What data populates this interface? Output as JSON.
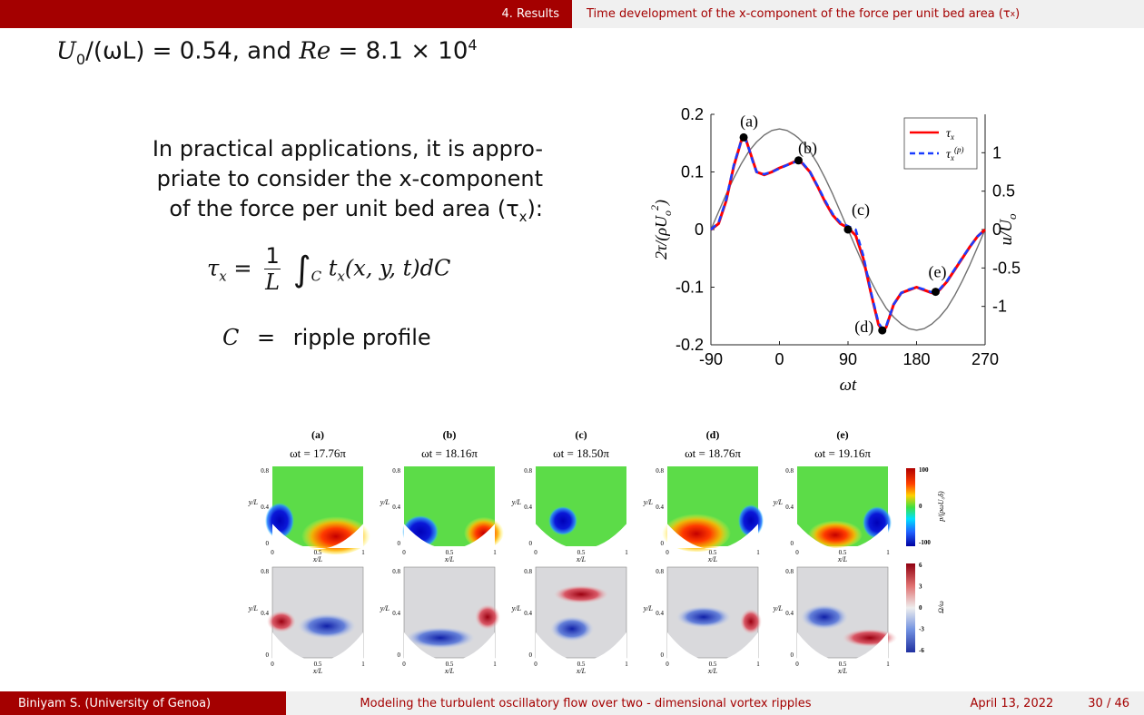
{
  "header": {
    "section": "4. Results",
    "frame_title": "Time development of the x-component of the force per unit bed area (τ",
    "frame_title_sub": "x",
    "frame_title_close": ")"
  },
  "heading": {
    "lhs": "U",
    "lhs_sub": "0",
    "lhs_rest": "/(ωL) = 0.54, and ",
    "re": "Re",
    "re_rest": " = 8.1 × 10",
    "re_exp": "4"
  },
  "body": {
    "line1": "In practical applications, it is appro-",
    "line2": "priate to consider the x-component",
    "line3": "of the force per unit bed area (τ",
    "line3_sub": "x",
    "line3_end": "):",
    "eq_lhs": "τ",
    "eq_lhs_sub": "x",
    "eq_num": "1",
    "eq_den": "L",
    "eq_integral": "∫",
    "eq_integral_sub": "C",
    "eq_rhs": "t",
    "eq_rhs_sub": "x",
    "eq_rhs_args": "(x, y, t)dC",
    "eq2_lhs": "C",
    "eq2_eq": "=",
    "eq2_rhs": "ripple  profile"
  },
  "chart_data": {
    "type": "line",
    "xlabel": "ωt",
    "ylabel": "2τ/(ρU",
    "ylabel_sub": "o",
    "ylabel_sup": "2",
    "ylabel_close": ")",
    "y2label": "u/U",
    "y2label_sub": "o",
    "xlim": [
      -90,
      270
    ],
    "ylim": [
      -0.2,
      0.2
    ],
    "y2lim": [
      -1.5,
      1.5
    ],
    "xticks": [
      "-90",
      "0",
      "90",
      "180",
      "270"
    ],
    "yticks": [
      "0.2",
      "0.1",
      "0",
      "-0.1",
      "-0.2"
    ],
    "y2ticks": [
      "1",
      "0.5",
      "0",
      "-0.5",
      "-1"
    ],
    "legend": [
      "τ",
      "τ"
    ],
    "legend_sub": [
      "x",
      "x"
    ],
    "legend_sup": [
      "",
      "(p)"
    ],
    "legend_position": "top-right",
    "colors": {
      "tau": "#ff0000",
      "tau_p": "#1a3cff",
      "velocity": "#707070"
    },
    "x": [
      -90,
      -80,
      -70,
      -60,
      -50,
      -45,
      -40,
      -35,
      -30,
      -20,
      -10,
      0,
      10,
      20,
      25,
      30,
      40,
      50,
      60,
      70,
      80,
      90,
      100,
      110,
      120,
      130,
      135,
      140,
      150,
      160,
      170,
      180,
      190,
      200,
      210,
      220,
      230,
      240,
      250,
      260,
      270
    ],
    "series": [
      {
        "key": "tau",
        "values": [
          0.0,
          0.01,
          0.05,
          0.11,
          0.155,
          0.16,
          0.14,
          0.12,
          0.1,
          0.095,
          0.1,
          0.107,
          0.112,
          0.118,
          0.12,
          0.115,
          0.1,
          0.075,
          0.048,
          0.025,
          0.01,
          0.003,
          -0.01,
          -0.05,
          -0.11,
          -0.165,
          -0.175,
          -0.17,
          -0.13,
          -0.11,
          -0.105,
          -0.1,
          -0.105,
          -0.11,
          -0.105,
          -0.09,
          -0.07,
          -0.05,
          -0.03,
          -0.012,
          0.0
        ]
      },
      {
        "key": "tau_p",
        "values": [
          0.0,
          0.012,
          0.052,
          0.112,
          0.155,
          0.158,
          0.14,
          0.118,
          0.1,
          0.096,
          0.1,
          0.106,
          0.112,
          0.117,
          0.12,
          0.116,
          0.1,
          0.076,
          0.05,
          0.027,
          0.012,
          0.006,
          0.0,
          -0.045,
          -0.108,
          -0.162,
          -0.172,
          -0.168,
          -0.13,
          -0.11,
          -0.104,
          -0.1,
          -0.104,
          -0.109,
          -0.104,
          -0.089,
          -0.069,
          -0.049,
          -0.03,
          -0.012,
          0.0
        ]
      },
      {
        "key": "velocity",
        "values": [
          0.0,
          0.23,
          0.46,
          0.67,
          0.86,
          0.94,
          1.02,
          1.08,
          1.14,
          1.23,
          1.29,
          1.31,
          1.29,
          1.23,
          1.19,
          1.14,
          1.02,
          0.86,
          0.67,
          0.46,
          0.23,
          0.0,
          -0.23,
          -0.46,
          -0.67,
          -0.86,
          -0.94,
          -1.02,
          -1.14,
          -1.23,
          -1.29,
          -1.31,
          -1.29,
          -1.23,
          -1.14,
          -1.02,
          -0.86,
          -0.67,
          -0.46,
          -0.23,
          0.0
        ]
      }
    ],
    "markers": [
      {
        "label": "(a)",
        "x": -47,
        "y": 0.16
      },
      {
        "label": "(b)",
        "x": 25,
        "y": 0.12
      },
      {
        "label": "(c)",
        "x": 90,
        "y": 0.0
      },
      {
        "label": "(d)",
        "x": 135,
        "y": -0.175
      },
      {
        "label": "(e)",
        "x": 205,
        "y": -0.108
      }
    ]
  },
  "field_figure": {
    "columns": [
      {
        "label": "(a)",
        "time": "ωt = 17.76π"
      },
      {
        "label": "(b)",
        "time": "ωt = 18.16π"
      },
      {
        "label": "(c)",
        "time": "ωt = 18.50π"
      },
      {
        "label": "(d)",
        "time": "ωt = 18.76π"
      },
      {
        "label": "(e)",
        "time": "ωt = 19.16π"
      }
    ],
    "y_ticks": [
      "0.8",
      "0.4",
      "0"
    ],
    "x_ticks": [
      "0",
      "0.5",
      "1"
    ],
    "ylabel": "y/L",
    "xlabel": "x/L",
    "pressure_colorbar": {
      "label": "p/(ρωU₀δ)",
      "ticks": [
        "100",
        "0",
        "-100"
      ]
    },
    "vorticity_colorbar": {
      "label": "Ω/ω",
      "ticks": [
        "6",
        "3",
        "0",
        "-3",
        "-6"
      ]
    }
  },
  "footer": {
    "author": "Biniyam S.  (University of Genoa)",
    "title": "Modeling the turbulent oscillatory flow over two - dimensional vortex ripples",
    "date": "April 13, 2022",
    "page": "30 / 46"
  }
}
